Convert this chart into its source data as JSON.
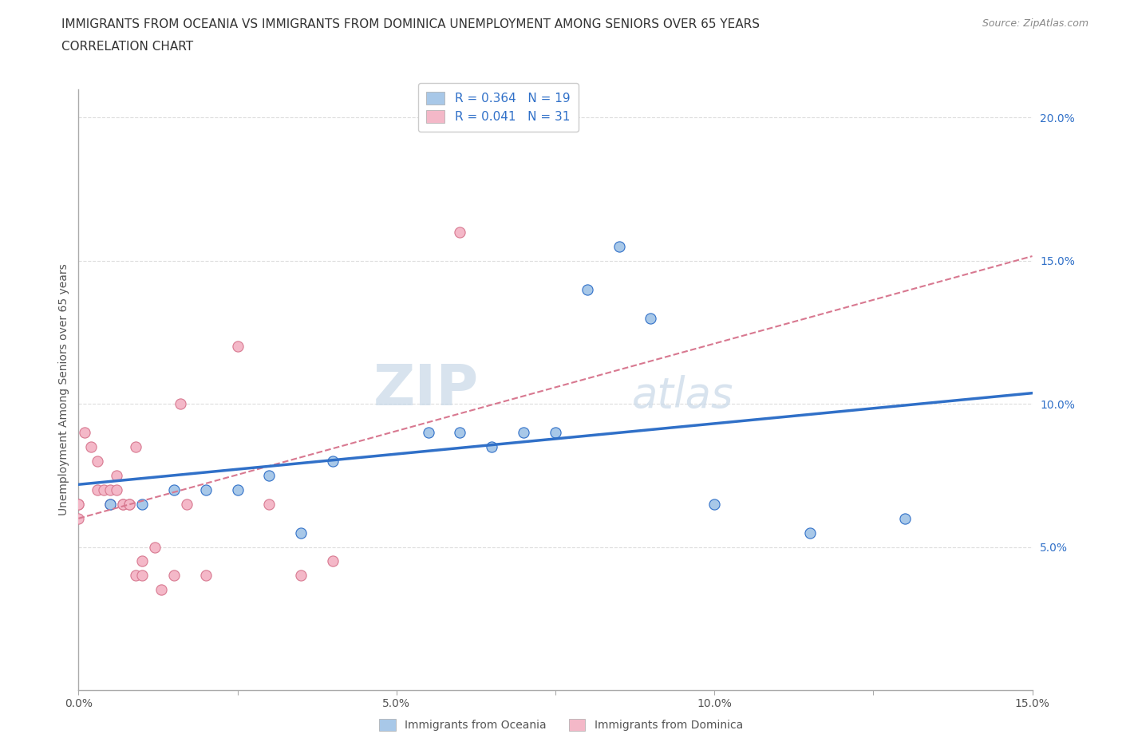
{
  "title_line1": "IMMIGRANTS FROM OCEANIA VS IMMIGRANTS FROM DOMINICA UNEMPLOYMENT AMONG SENIORS OVER 65 YEARS",
  "title_line2": "CORRELATION CHART",
  "source": "Source: ZipAtlas.com",
  "ylabel": "Unemployment Among Seniors over 65 years",
  "xlim": [
    0.0,
    0.15
  ],
  "ylim": [
    0.0,
    0.21
  ],
  "yticks_right": [
    0.05,
    0.1,
    0.15,
    0.2
  ],
  "ytick_right_labels": [
    "5.0%",
    "10.0%",
    "15.0%",
    "20.0%"
  ],
  "xtick_labels": [
    "0.0%",
    "",
    "5.0%",
    "",
    "10.0%",
    "",
    "15.0%"
  ],
  "oceania_x": [
    0.005,
    0.01,
    0.015,
    0.02,
    0.025,
    0.03,
    0.035,
    0.04,
    0.055,
    0.06,
    0.065,
    0.07,
    0.075,
    0.08,
    0.085,
    0.09,
    0.1,
    0.115,
    0.13
  ],
  "oceania_y": [
    0.065,
    0.065,
    0.07,
    0.07,
    0.07,
    0.075,
    0.055,
    0.08,
    0.09,
    0.09,
    0.085,
    0.09,
    0.09,
    0.14,
    0.155,
    0.13,
    0.065,
    0.055,
    0.06
  ],
  "dominica_x": [
    0.0,
    0.0,
    0.0,
    0.001,
    0.002,
    0.003,
    0.003,
    0.004,
    0.005,
    0.005,
    0.006,
    0.006,
    0.007,
    0.007,
    0.008,
    0.008,
    0.009,
    0.009,
    0.01,
    0.01,
    0.012,
    0.013,
    0.015,
    0.016,
    0.017,
    0.02,
    0.025,
    0.03,
    0.035,
    0.04,
    0.06
  ],
  "dominica_y": [
    0.065,
    0.06,
    0.065,
    0.09,
    0.085,
    0.08,
    0.07,
    0.07,
    0.07,
    0.065,
    0.07,
    0.075,
    0.065,
    0.065,
    0.065,
    0.065,
    0.085,
    0.04,
    0.045,
    0.04,
    0.05,
    0.035,
    0.04,
    0.1,
    0.065,
    0.04,
    0.12,
    0.065,
    0.04,
    0.045,
    0.16
  ],
  "R_oceania": 0.364,
  "N_oceania": 19,
  "R_dominica": 0.041,
  "N_dominica": 31,
  "color_oceania": "#A8C8E8",
  "color_dominica": "#F4B8C8",
  "color_line_oceania": "#3070C8",
  "color_line_dominica": "#D87890",
  "watermark_zip": "ZIP",
  "watermark_atlas": "atlas",
  "background_color": "#FFFFFF",
  "grid_color": "#DDDDDD"
}
